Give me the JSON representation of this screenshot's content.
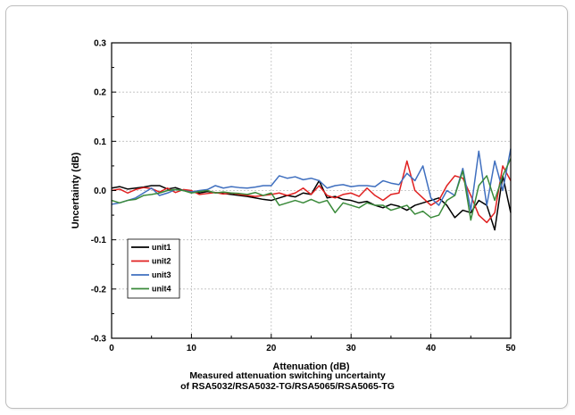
{
  "chart_data": {
    "type": "line",
    "xlabel": "Attenuation (dB)",
    "ylabel": "Uncertainty (dB)",
    "xlim": [
      0,
      50
    ],
    "ylim": [
      -0.3,
      0.3
    ],
    "xticks": [
      0,
      10,
      20,
      30,
      40,
      50
    ],
    "xtick_labels": [
      "0",
      "10",
      "20",
      "30",
      "40",
      "50"
    ],
    "yticks": [
      -0.3,
      -0.2,
      -0.1,
      0.0,
      0.1,
      0.2,
      0.3
    ],
    "ytick_labels": [
      "-0.3",
      "-0.2",
      "-0.1",
      "0.0",
      "0.1",
      "0.2",
      "0.3"
    ],
    "grid": true,
    "legend_position": "lower-left",
    "x": [
      0,
      1,
      2,
      3,
      4,
      5,
      6,
      7,
      8,
      9,
      10,
      11,
      12,
      13,
      14,
      15,
      16,
      17,
      18,
      19,
      20,
      21,
      22,
      23,
      24,
      25,
      26,
      27,
      28,
      29,
      30,
      31,
      32,
      33,
      34,
      35,
      36,
      37,
      38,
      39,
      40,
      41,
      42,
      43,
      44,
      45,
      46,
      47,
      48,
      49,
      50
    ],
    "series": [
      {
        "name": "unit1",
        "color": "#000000",
        "values": [
          0.005,
          0.008,
          0.003,
          0.005,
          0.007,
          0.01,
          0.01,
          0.003,
          0.006,
          0.0,
          -0.003,
          -0.005,
          -0.002,
          -0.004,
          -0.006,
          -0.008,
          -0.01,
          -0.012,
          -0.015,
          -0.018,
          -0.02,
          -0.015,
          -0.01,
          -0.013,
          -0.005,
          -0.008,
          0.02,
          -0.015,
          -0.012,
          -0.018,
          -0.02,
          -0.025,
          -0.022,
          -0.03,
          -0.035,
          -0.028,
          -0.032,
          -0.04,
          -0.03,
          -0.025,
          -0.02,
          -0.015,
          -0.03,
          -0.055,
          -0.04,
          -0.045,
          -0.02,
          -0.03,
          -0.08,
          0.03,
          -0.045
        ]
      },
      {
        "name": "unit2",
        "color": "#e02020",
        "values": [
          0.0,
          0.003,
          -0.005,
          0.002,
          0.006,
          0.004,
          -0.003,
          0.005,
          -0.004,
          0.002,
          0.0,
          -0.008,
          -0.006,
          -0.004,
          -0.007,
          -0.005,
          -0.008,
          -0.01,
          -0.012,
          -0.01,
          -0.008,
          -0.005,
          -0.01,
          -0.005,
          0.005,
          -0.008,
          0.01,
          -0.01,
          -0.015,
          -0.008,
          -0.005,
          -0.012,
          0.005,
          -0.01,
          -0.02,
          -0.008,
          -0.005,
          0.06,
          0.0,
          -0.015,
          -0.03,
          -0.02,
          0.01,
          0.03,
          0.025,
          -0.01,
          -0.05,
          -0.065,
          -0.045,
          0.05,
          0.02
        ]
      },
      {
        "name": "unit3",
        "color": "#3f6fbf",
        "values": [
          -0.028,
          -0.025,
          -0.02,
          -0.015,
          -0.005,
          0.005,
          -0.01,
          -0.005,
          0.002,
          0.0,
          -0.003,
          0.0,
          0.002,
          0.01,
          0.005,
          0.008,
          0.006,
          0.005,
          0.007,
          0.01,
          0.01,
          0.03,
          0.025,
          0.028,
          0.022,
          0.025,
          0.02,
          0.005,
          0.01,
          0.012,
          0.008,
          0.01,
          0.01,
          0.008,
          0.02,
          0.015,
          0.012,
          0.035,
          0.02,
          0.05,
          -0.015,
          -0.03,
          0.0,
          -0.01,
          0.045,
          -0.04,
          0.08,
          -0.03,
          0.06,
          0.0,
          0.085
        ]
      },
      {
        "name": "unit4",
        "color": "#3a8a3a",
        "values": [
          -0.02,
          -0.025,
          -0.02,
          -0.018,
          -0.01,
          -0.008,
          -0.005,
          0.0,
          0.002,
          0.0,
          -0.005,
          -0.002,
          0.0,
          -0.005,
          -0.003,
          -0.005,
          -0.006,
          -0.008,
          -0.004,
          -0.01,
          -0.005,
          -0.03,
          -0.025,
          -0.02,
          -0.025,
          -0.018,
          -0.025,
          -0.02,
          -0.045,
          -0.025,
          -0.03,
          -0.035,
          -0.025,
          -0.03,
          -0.03,
          -0.04,
          -0.035,
          -0.03,
          -0.048,
          -0.042,
          -0.055,
          -0.05,
          -0.02,
          -0.01,
          0.04,
          -0.06,
          0.01,
          0.03,
          -0.02,
          0.03,
          0.065
        ]
      }
    ]
  },
  "caption": {
    "line1": "Measured attenuation switching uncertainty",
    "line2": "of RSA5032/RSA5032-TG/RSA5065/RSA5065-TG"
  }
}
